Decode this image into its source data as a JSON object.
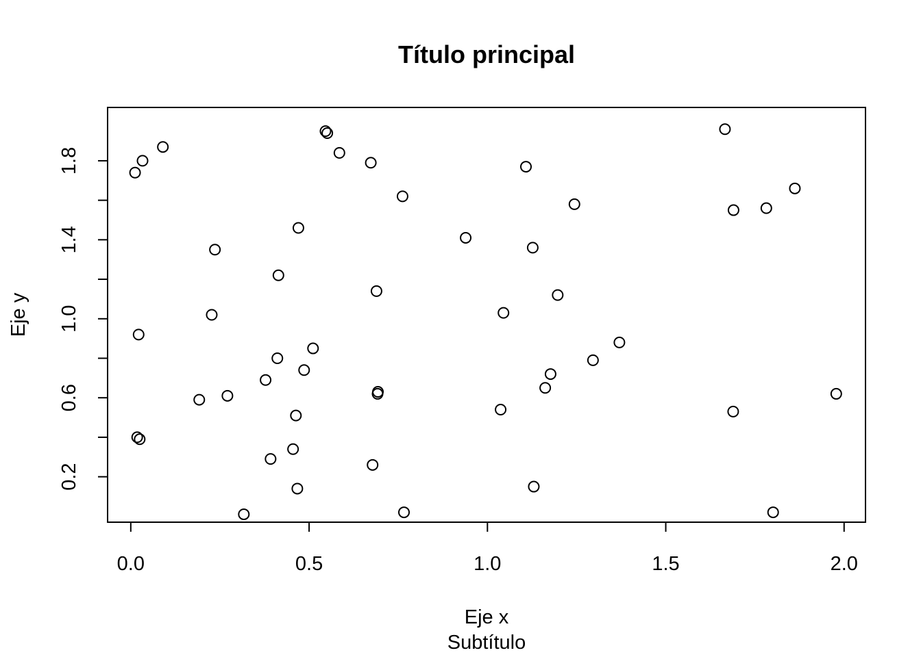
{
  "chart_data": {
    "type": "scatter",
    "title": "Título principal",
    "subtitle": "Subtítulo",
    "xlabel": "Eje x",
    "ylabel": "Eje y",
    "xlim": [
      -0.065,
      2.06
    ],
    "ylim": [
      -0.03,
      2.07
    ],
    "x_ticks": [
      0.0,
      0.5,
      1.0,
      1.5,
      2.0
    ],
    "x_tick_labels": [
      "0.0",
      "0.5",
      "1.0",
      "1.5",
      "2.0"
    ],
    "y_ticks": [
      0.2,
      0.4,
      0.6,
      0.8,
      1.0,
      1.2,
      1.4,
      1.6,
      1.8
    ],
    "y_tick_labels": [
      "0.2",
      "0.6",
      "1.0",
      "1.4",
      "1.8"
    ],
    "grid": false,
    "legend": "none",
    "series": [
      {
        "points": [
          [
            0.012,
            1.74
          ],
          [
            0.033,
            1.8
          ],
          [
            0.09,
            1.87
          ],
          [
            0.022,
            0.92
          ],
          [
            0.018,
            0.4
          ],
          [
            0.025,
            0.39
          ],
          [
            0.192,
            0.59
          ],
          [
            0.227,
            1.02
          ],
          [
            0.236,
            1.35
          ],
          [
            0.271,
            0.61
          ],
          [
            0.317,
            0.01
          ],
          [
            0.378,
            0.69
          ],
          [
            0.392,
            0.29
          ],
          [
            0.411,
            0.8
          ],
          [
            0.414,
            1.22
          ],
          [
            0.455,
            0.34
          ],
          [
            0.463,
            0.51
          ],
          [
            0.467,
            0.14
          ],
          [
            0.47,
            1.46
          ],
          [
            0.486,
            0.74
          ],
          [
            0.511,
            0.85
          ],
          [
            0.546,
            1.95
          ],
          [
            0.551,
            1.94
          ],
          [
            0.585,
            1.84
          ],
          [
            0.673,
            1.79
          ],
          [
            0.678,
            0.26
          ],
          [
            0.689,
            1.14
          ],
          [
            0.692,
            0.62
          ],
          [
            0.693,
            0.63
          ],
          [
            0.762,
            1.62
          ],
          [
            0.766,
            0.02
          ],
          [
            0.939,
            1.41
          ],
          [
            1.037,
            0.54
          ],
          [
            1.045,
            1.03
          ],
          [
            1.108,
            1.77
          ],
          [
            1.127,
            1.36
          ],
          [
            1.13,
            0.15
          ],
          [
            1.162,
            0.65
          ],
          [
            1.177,
            0.72
          ],
          [
            1.197,
            1.12
          ],
          [
            1.244,
            1.58
          ],
          [
            1.296,
            0.79
          ],
          [
            1.37,
            0.88
          ],
          [
            1.666,
            1.96
          ],
          [
            1.689,
            0.53
          ],
          [
            1.69,
            1.55
          ],
          [
            1.782,
            1.56
          ],
          [
            1.801,
            0.02
          ],
          [
            1.862,
            1.66
          ],
          [
            1.978,
            0.62
          ]
        ]
      }
    ]
  }
}
